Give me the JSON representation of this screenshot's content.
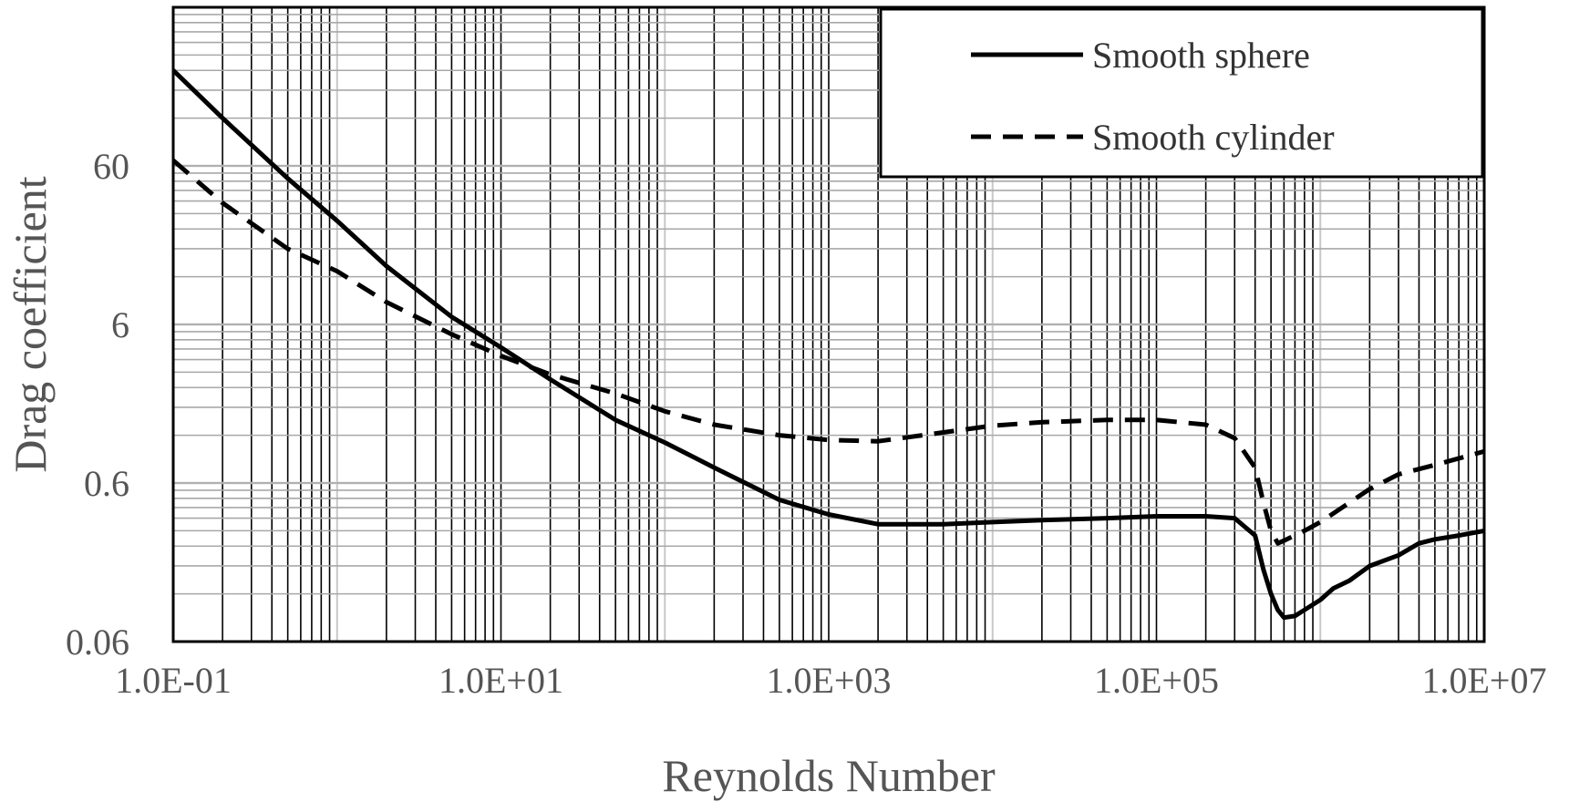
{
  "chart_data": {
    "type": "line",
    "xlabel": "Reynolds Number",
    "ylabel": "Drag coefficient",
    "x_scale": "log",
    "y_scale": "log",
    "xlim": [
      0.1,
      10000000
    ],
    "ylim": [
      0.06,
      600
    ],
    "x_ticks": [
      {
        "value": 0.1,
        "label": "1.0E-01"
      },
      {
        "value": 10,
        "label": "1.0E+01"
      },
      {
        "value": 1000,
        "label": "1.0E+03"
      },
      {
        "value": 100000,
        "label": "1.0E+05"
      },
      {
        "value": 10000000,
        "label": "1.0E+07"
      }
    ],
    "y_ticks": [
      {
        "value": 0.06,
        "label": "0.06"
      },
      {
        "value": 0.6,
        "label": "0.6"
      },
      {
        "value": 6,
        "label": "6"
      },
      {
        "value": 60,
        "label": "60"
      }
    ],
    "grid": true,
    "legend_position": "top-right",
    "series": [
      {
        "name": "Smooth sphere",
        "style": "solid",
        "color": "#000000",
        "points": [
          [
            0.1,
            240
          ],
          [
            0.2,
            120
          ],
          [
            0.5,
            50
          ],
          [
            1,
            27
          ],
          [
            2,
            14
          ],
          [
            5,
            6.7
          ],
          [
            10,
            4.3
          ],
          [
            20,
            2.7
          ],
          [
            50,
            1.5
          ],
          [
            100,
            1.08
          ],
          [
            200,
            0.75
          ],
          [
            500,
            0.47
          ],
          [
            1000,
            0.38
          ],
          [
            2000,
            0.33
          ],
          [
            5000,
            0.33
          ],
          [
            10000,
            0.34
          ],
          [
            20000,
            0.35
          ],
          [
            50000,
            0.36
          ],
          [
            100000,
            0.37
          ],
          [
            200000,
            0.37
          ],
          [
            300000,
            0.36
          ],
          [
            400000,
            0.28
          ],
          [
            450000,
            0.17
          ],
          [
            500000,
            0.12
          ],
          [
            550000,
            0.095
          ],
          [
            600000,
            0.085
          ],
          [
            700000,
            0.087
          ],
          [
            800000,
            0.095
          ],
          [
            1000000,
            0.11
          ],
          [
            1200000,
            0.13
          ],
          [
            1500000,
            0.145
          ],
          [
            2000000,
            0.18
          ],
          [
            3000000,
            0.21
          ],
          [
            4000000,
            0.25
          ],
          [
            5000000,
            0.265
          ],
          [
            7000000,
            0.28
          ],
          [
            10000000,
            0.3
          ]
        ]
      },
      {
        "name": "Smooth cylinder",
        "style": "dashed",
        "color": "#000000",
        "points": [
          [
            0.1,
            65
          ],
          [
            0.2,
            35
          ],
          [
            0.5,
            18
          ],
          [
            1,
            13
          ],
          [
            2,
            8.3
          ],
          [
            5,
            5.2
          ],
          [
            10,
            3.8
          ],
          [
            20,
            2.9
          ],
          [
            50,
            2.2
          ],
          [
            100,
            1.7
          ],
          [
            200,
            1.4
          ],
          [
            500,
            1.2
          ],
          [
            1000,
            1.12
          ],
          [
            2000,
            1.1
          ],
          [
            5000,
            1.25
          ],
          [
            10000,
            1.38
          ],
          [
            20000,
            1.45
          ],
          [
            50000,
            1.5
          ],
          [
            100000,
            1.5
          ],
          [
            200000,
            1.4
          ],
          [
            300000,
            1.15
          ],
          [
            400000,
            0.75
          ],
          [
            450000,
            0.45
          ],
          [
            500000,
            0.3
          ],
          [
            550000,
            0.25
          ],
          [
            600000,
            0.26
          ],
          [
            800000,
            0.3
          ],
          [
            1000000,
            0.34
          ],
          [
            2000000,
            0.55
          ],
          [
            3000000,
            0.68
          ],
          [
            5000000,
            0.78
          ],
          [
            10000000,
            0.95
          ]
        ]
      }
    ]
  }
}
